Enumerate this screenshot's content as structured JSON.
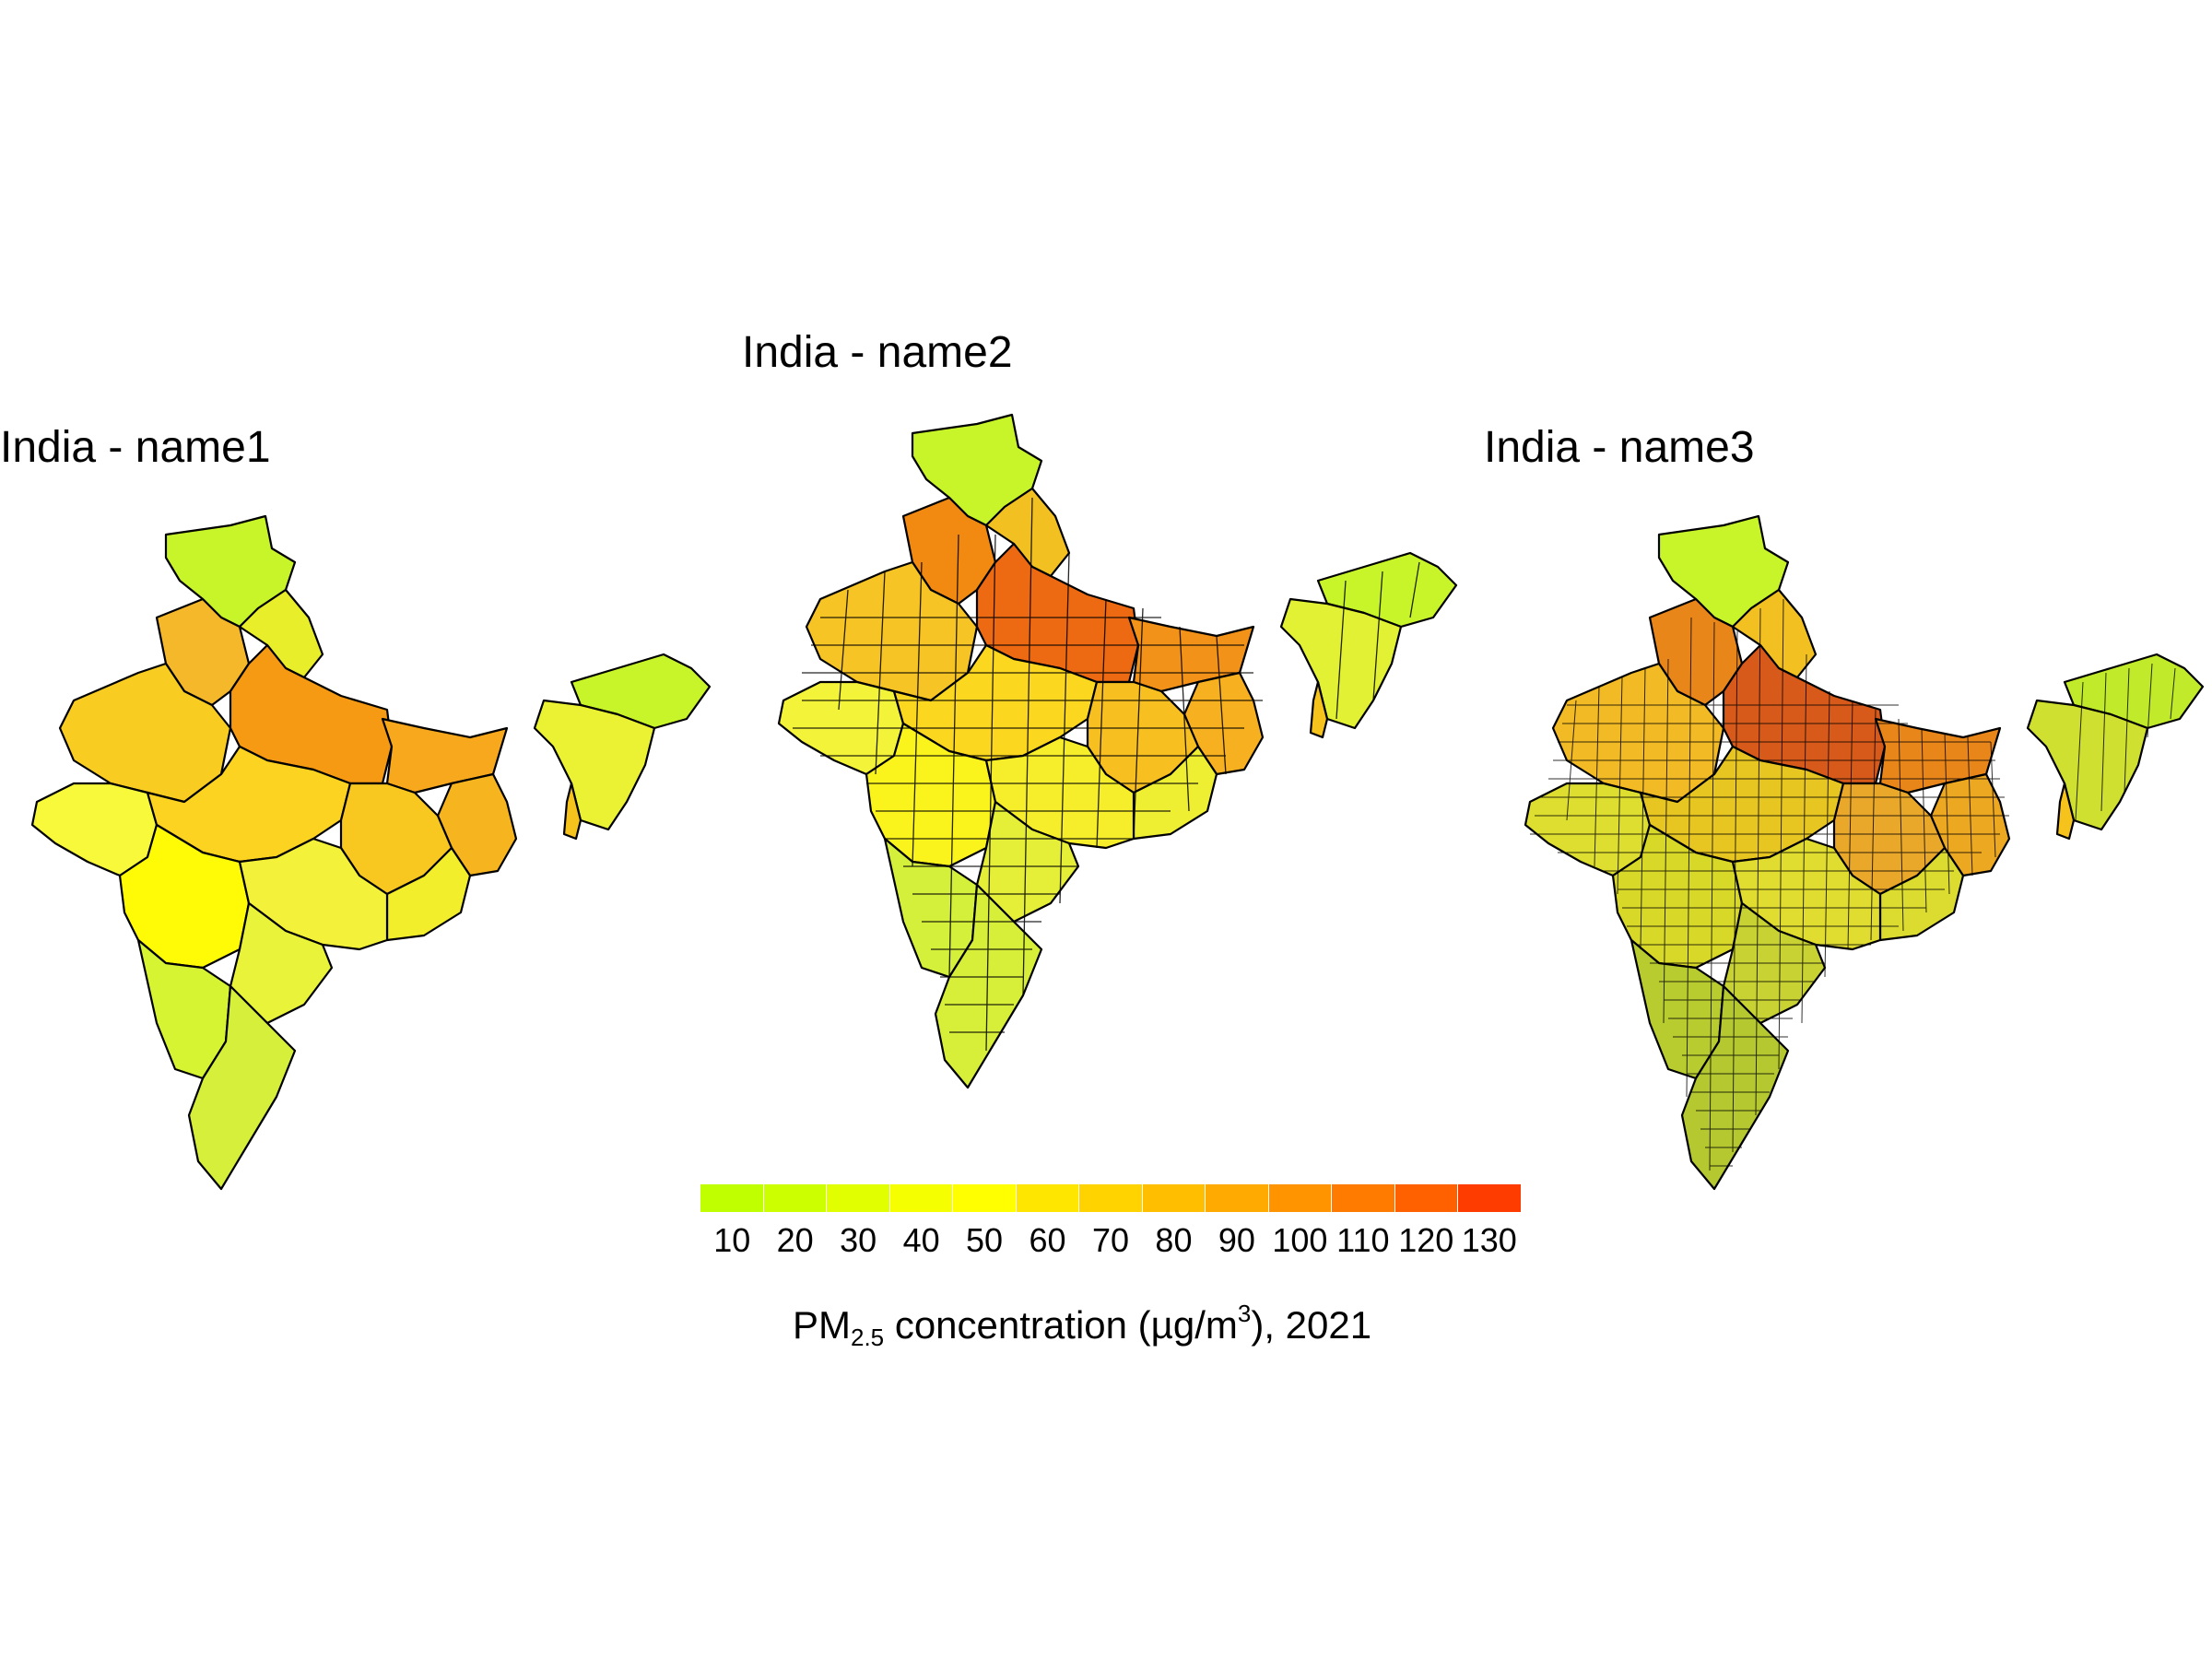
{
  "maps": [
    {
      "title": "India - name1",
      "level": "states"
    },
    {
      "title": "India - name2",
      "level": "districts"
    },
    {
      "title": "India - name3",
      "level": "sub-districts"
    }
  ],
  "colors": {
    "low": "#aaff00",
    "mid": "#ffff00",
    "high": "#ff0000",
    "border": "#000000"
  },
  "legend": {
    "ticks": [
      "10",
      "20",
      "30",
      "40",
      "50",
      "60",
      "70",
      "80",
      "90",
      "100",
      "110",
      "120",
      "130"
    ],
    "swatches": [
      "#bfff00",
      "#ccff00",
      "#e2ff00",
      "#f5ff00",
      "#ffff00",
      "#ffe600",
      "#ffd300",
      "#ffbf00",
      "#ffaa00",
      "#ff9300",
      "#ff7b00",
      "#ff6000",
      "#ff3c00"
    ],
    "title_main": "PM",
    "title_sub": "2.5",
    "title_mid": " concentration (µg/m",
    "title_sup": "3",
    "title_end": "), 2021"
  }
}
